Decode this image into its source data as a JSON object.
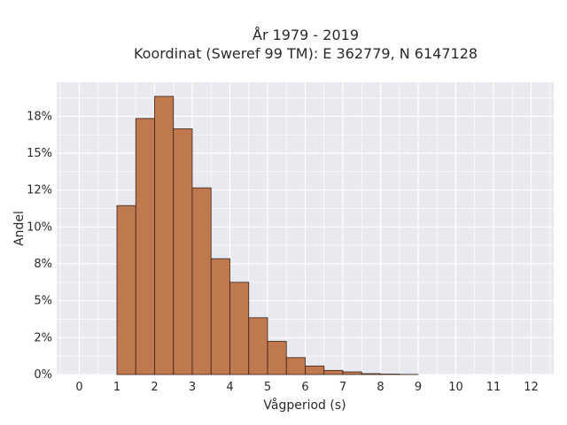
{
  "chart_data": {
    "type": "bar",
    "title_line1": "År 1979 - 2019",
    "title_line2": "Koordinat (Sweref 99 TM): E 362779, N 6147128",
    "xlabel": "Vågperiod (s)",
    "ylabel": "Andel",
    "xlim": [
      -0.6,
      12.6
    ],
    "ylim": [
      0,
      0.198
    ],
    "x_ticks": [
      0,
      1,
      2,
      3,
      4,
      5,
      6,
      7,
      8,
      9,
      10,
      11,
      12
    ],
    "x_tick_labels": [
      "0",
      "1",
      "2",
      "3",
      "4",
      "5",
      "6",
      "7",
      "8",
      "9",
      "10",
      "11",
      "12"
    ],
    "y_ticks": [
      0,
      0.025,
      0.05,
      0.075,
      0.1,
      0.125,
      0.15,
      0.175
    ],
    "y_tick_labels": [
      "0%",
      "2%",
      "5%",
      "8%",
      "10%",
      "12%",
      "15%",
      "18%"
    ],
    "bin_width": 0.5,
    "bin_starts": [
      1.0,
      1.5,
      2.0,
      2.5,
      3.0,
      3.5,
      4.0,
      4.5,
      5.0,
      5.5,
      6.0,
      6.5,
      7.0,
      7.5,
      8.0,
      8.5
    ],
    "values": [
      0.1145,
      0.1735,
      0.1885,
      0.1665,
      0.1265,
      0.0785,
      0.0625,
      0.0385,
      0.0225,
      0.0115,
      0.0058,
      0.0028,
      0.0018,
      0.0006,
      0.0003,
      0.0001
    ],
    "bar_color": "#c0784f",
    "bar_edge_color": "#3a2418",
    "plot_background": "#e9e9f0",
    "grid_color": "#ffffff",
    "grid": true
  }
}
